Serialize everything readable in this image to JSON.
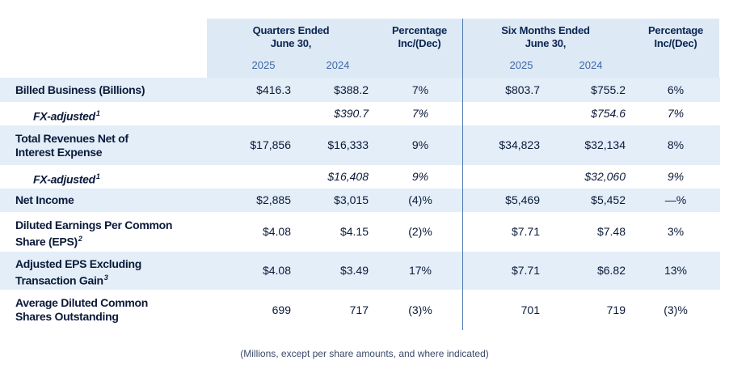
{
  "header": {
    "quarters_label": "Quarters Ended",
    "quarters_sub": "June 30,",
    "pct_label": "Percentage",
    "pct_sub": "Inc/(Dec)",
    "six_label": "Six Months Ended",
    "six_sub": "June 30,",
    "years": [
      "2025",
      "2024",
      "2025",
      "2024"
    ]
  },
  "rows": [
    {
      "label": "Billed Business (Billions)",
      "sup": "",
      "sub": false,
      "q2025": "$416.3",
      "q2024": "$388.2",
      "qpct": "7%",
      "s2025": "$803.7",
      "s2024": "$755.2",
      "spct": "6%"
    },
    {
      "label": "FX-adjusted",
      "sup": "1",
      "sub": true,
      "q2025": "",
      "q2024": "$390.7",
      "qpct": "7%",
      "s2025": "",
      "s2024": "$754.6",
      "spct": "7%"
    },
    {
      "label": "Total Revenues Net of",
      "label2": "Interest Expense",
      "sup": "",
      "sub": false,
      "q2025": "$17,856",
      "q2024": "$16,333",
      "qpct": "9%",
      "s2025": "$34,823",
      "s2024": "$32,134",
      "spct": "8%"
    },
    {
      "label": "FX-adjusted",
      "sup": "1",
      "sub": true,
      "q2025": "",
      "q2024": "$16,408",
      "qpct": "9%",
      "s2025": "",
      "s2024": "$32,060",
      "spct": "9%"
    },
    {
      "label": "Net Income",
      "sup": "",
      "sub": false,
      "q2025": "$2,885",
      "q2024": "$3,015",
      "qpct": "(4)%",
      "s2025": "$5,469",
      "s2024": "$5,452",
      "spct": "—%"
    },
    {
      "label": "Diluted Earnings Per Common",
      "label2": "Share (EPS)",
      "sup": "2",
      "sub": false,
      "q2025": "$4.08",
      "q2024": "$4.15",
      "qpct": "(2)%",
      "s2025": "$7.71",
      "s2024": "$7.48",
      "spct": "3%"
    },
    {
      "label": "Adjusted  EPS Excluding",
      "label2": "Transaction Gain",
      "sup": "3",
      "sub": false,
      "q2025": "$4.08",
      "q2024": "$3.49",
      "qpct": "17%",
      "s2025": "$7.71",
      "s2024": "$6.82",
      "spct": "13%"
    },
    {
      "label": "Average Diluted Common",
      "label2": "Shares Outstanding",
      "sup": "",
      "sub": false,
      "q2025": "699",
      "q2024": "717",
      "qpct": "(3)%",
      "s2025": "701",
      "s2024": "719",
      "spct": "(3)%"
    }
  ],
  "footnote": "(Millions, except per share amounts, and where indicated)",
  "colors": {
    "header_bg": "#dde9f5",
    "row_shade": "#e3eef8",
    "divider": "#4c78b0",
    "text": "#0b1a3a",
    "year_text": "#3e68a7"
  }
}
